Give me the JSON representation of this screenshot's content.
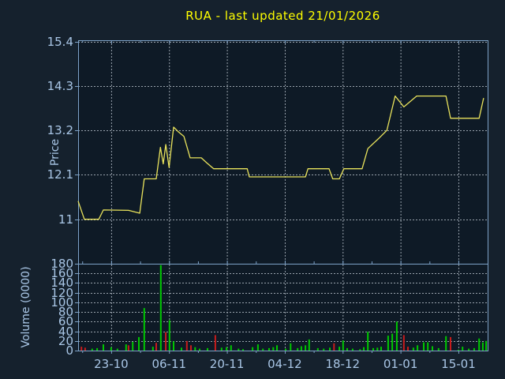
{
  "window": {
    "title": "RUA - last updated 21/01/2026"
  },
  "colors": {
    "background": "#15212d",
    "plot_background": "#0e1a26",
    "axis": "#7da2c8",
    "grid": "#98a2ac",
    "tick_text": "#a9c6e6",
    "title_text": "#ffff00",
    "price_line": "#e9e35c",
    "volume_up": "#00c800",
    "volume_down": "#c81c1c"
  },
  "chart_data": [
    {
      "type": "line",
      "title": "RUA - last updated 21/01/2026",
      "ylabel": "Price",
      "ylim": [
        9.9,
        15.43
      ],
      "ytick_values": [
        11,
        12.1,
        13.2,
        14.3,
        15.4
      ],
      "ytick_labels": [
        "11",
        "12.1",
        "13.2",
        "14.3",
        "15.4"
      ],
      "xlim_days": [
        0,
        99.07
      ],
      "xticks": [
        {
          "d": 8,
          "label": "23-10"
        },
        {
          "d": 22,
          "label": "06-11"
        },
        {
          "d": 36,
          "label": "20-11"
        },
        {
          "d": 50,
          "label": "04-12"
        },
        {
          "d": 64,
          "label": "18-12"
        },
        {
          "d": 78,
          "label": "01-01"
        },
        {
          "d": 92,
          "label": "15-01"
        }
      ],
      "xminor_days": [
        1,
        15,
        29,
        43,
        57,
        71,
        85,
        99
      ],
      "grid": true,
      "series": [
        {
          "name": "price",
          "points": [
            [
              0,
              11.45
            ],
            [
              0.4,
              11.33
            ],
            [
              1.5,
              11.0
            ],
            [
              5,
              11.0
            ],
            [
              6.1,
              11.23
            ],
            [
              12.2,
              11.22
            ],
            [
              14.9,
              11.15
            ],
            [
              16,
              12.0
            ],
            [
              18.9,
              12.0
            ],
            [
              19.9,
              12.78
            ],
            [
              20.6,
              12.37
            ],
            [
              21.2,
              12.85
            ],
            [
              22,
              12.28
            ],
            [
              23.1,
              13.28
            ],
            [
              24.2,
              13.17
            ],
            [
              25.6,
              13.05
            ],
            [
              27.1,
              12.52
            ],
            [
              29.8,
              12.52
            ],
            [
              31.1,
              12.4
            ],
            [
              32.8,
              12.25
            ],
            [
              40.9,
              12.25
            ],
            [
              41.4,
              12.05
            ],
            [
              55,
              12.05
            ],
            [
              55.6,
              12.25
            ],
            [
              60.7,
              12.25
            ],
            [
              61.6,
              12.0
            ],
            [
              63.2,
              12.0
            ],
            [
              64.3,
              12.25
            ],
            [
              68.7,
              12.25
            ],
            [
              70.1,
              12.75
            ],
            [
              72.7,
              13.0
            ],
            [
              74.7,
              13.2
            ],
            [
              76.7,
              14.05
            ],
            [
              78.8,
              13.78
            ],
            [
              81.9,
              14.05
            ],
            [
              89,
              14.05
            ],
            [
              90.1,
              13.5
            ],
            [
              97,
              13.5
            ],
            [
              98.1,
              14.0
            ]
          ]
        }
      ]
    },
    {
      "type": "bar",
      "ylabel": "Volume (0000)",
      "ylim": [
        0,
        180
      ],
      "ytick_values": [
        0,
        20,
        40,
        60,
        80,
        100,
        120,
        140,
        160,
        180
      ],
      "ytick_labels": [
        "0",
        "20",
        "40",
        "60",
        "80",
        "100",
        "120",
        "140",
        "160",
        "180"
      ],
      "grid": true,
      "bars": [
        [
          0.8,
          8,
          "d"
        ],
        [
          1.7,
          6,
          "d"
        ],
        [
          3.4,
          4,
          "u"
        ],
        [
          4.6,
          5,
          "u"
        ],
        [
          6.1,
          13,
          "u"
        ],
        [
          8,
          7,
          "u"
        ],
        [
          9.5,
          4,
          "u"
        ],
        [
          11.6,
          13,
          "u"
        ],
        [
          12.2,
          11,
          "d"
        ],
        [
          13.2,
          18,
          "u"
        ],
        [
          14.7,
          28,
          "u"
        ],
        [
          16,
          88,
          "u"
        ],
        [
          18.1,
          8,
          "u"
        ],
        [
          18.9,
          16,
          "d"
        ],
        [
          20,
          177,
          "u"
        ],
        [
          21.2,
          38,
          "d"
        ],
        [
          22.1,
          63,
          "u"
        ],
        [
          23.1,
          19,
          "u"
        ],
        [
          25,
          6,
          "u"
        ],
        [
          26.3,
          20,
          "d"
        ],
        [
          27.3,
          11,
          "d"
        ],
        [
          28.3,
          7,
          "u"
        ],
        [
          29.4,
          4,
          "u"
        ],
        [
          31.3,
          5,
          "u"
        ],
        [
          33.2,
          32,
          "d"
        ],
        [
          34.7,
          6,
          "u"
        ],
        [
          35.9,
          7,
          "u"
        ],
        [
          37,
          11,
          "u"
        ],
        [
          38.8,
          4,
          "u"
        ],
        [
          39.9,
          3,
          "u"
        ],
        [
          42.2,
          7,
          "u"
        ],
        [
          43.5,
          13,
          "u"
        ],
        [
          44.7,
          4,
          "u"
        ],
        [
          46.2,
          5,
          "u"
        ],
        [
          47.2,
          7,
          "u"
        ],
        [
          48.1,
          11,
          "u"
        ],
        [
          50.2,
          4,
          "u"
        ],
        [
          51.4,
          15,
          "u"
        ],
        [
          53.1,
          5,
          "u"
        ],
        [
          54,
          9,
          "u"
        ],
        [
          55,
          11,
          "u"
        ],
        [
          55.9,
          23,
          "u"
        ],
        [
          58,
          5,
          "u"
        ],
        [
          59.4,
          4,
          "u"
        ],
        [
          60.9,
          6,
          "u"
        ],
        [
          61.9,
          15,
          "d"
        ],
        [
          63.2,
          8,
          "u"
        ],
        [
          64.1,
          21,
          "u"
        ],
        [
          65.1,
          5,
          "u"
        ],
        [
          66.4,
          4,
          "u"
        ],
        [
          68.2,
          3,
          "u"
        ],
        [
          69.1,
          7,
          "u"
        ],
        [
          70.1,
          39,
          "u"
        ],
        [
          71.4,
          5,
          "u"
        ],
        [
          72.4,
          6,
          "u"
        ],
        [
          73.3,
          8,
          "u"
        ],
        [
          75,
          31,
          "u"
        ],
        [
          76,
          35,
          "u"
        ],
        [
          77.1,
          60,
          "u"
        ],
        [
          78.8,
          32,
          "d"
        ],
        [
          79.8,
          8,
          "d"
        ],
        [
          81.1,
          6,
          "u"
        ],
        [
          82.1,
          11,
          "u"
        ],
        [
          83.6,
          17,
          "u"
        ],
        [
          84.6,
          17,
          "u"
        ],
        [
          85.7,
          9,
          "u"
        ],
        [
          87.2,
          5,
          "u"
        ],
        [
          89,
          30,
          "u"
        ],
        [
          90.1,
          28,
          "d"
        ],
        [
          92,
          2,
          "u"
        ],
        [
          93,
          8,
          "u"
        ],
        [
          94.5,
          4,
          "u"
        ],
        [
          95.8,
          5,
          "u"
        ],
        [
          97,
          25,
          "u"
        ],
        [
          97.9,
          17,
          "u"
        ],
        [
          98.7,
          20,
          "u"
        ]
      ]
    }
  ]
}
